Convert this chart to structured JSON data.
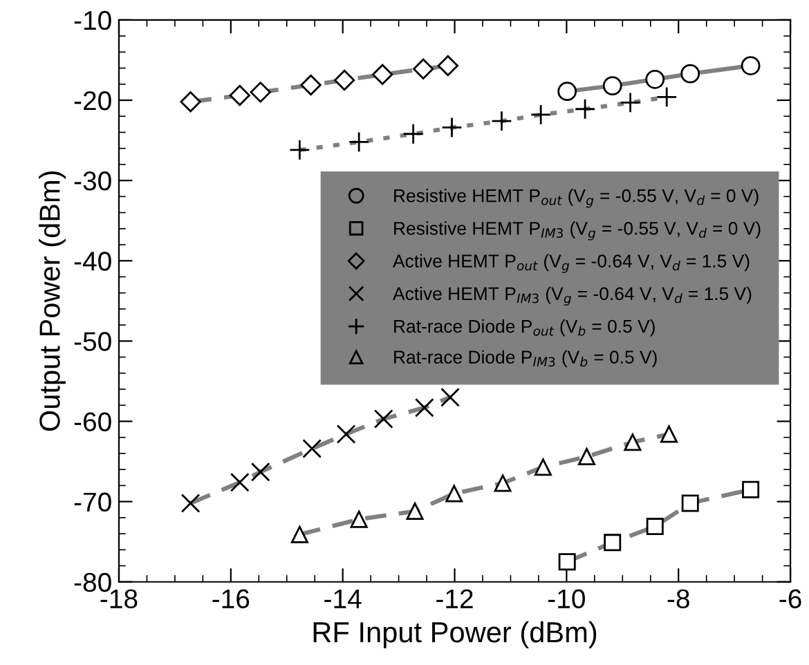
{
  "chart_data": {
    "type": "line",
    "xlabel": "RF Input Power (dBm)",
    "ylabel": "Output Power (dBm)",
    "xlim": [
      -18,
      -6
    ],
    "xticks": [
      -18,
      -16,
      -14,
      -12,
      -10,
      -8,
      -6
    ],
    "ylim": [
      -80,
      -10
    ],
    "yticks": [
      -80,
      -70,
      -60,
      -50,
      -40,
      -30,
      -20,
      -10
    ],
    "grid": false,
    "legend": "right",
    "series": [
      {
        "name": "Resistive HEMT P$_{out}$ (V$_{g}$ = -0.55 V, V$_{d}$ = 0 V)",
        "color": "#808080",
        "marker": "circle",
        "line_style": "solid",
        "x": [
          -9.99,
          -9.18,
          -8.42,
          -7.79,
          -6.71
        ],
        "values": [
          -18.9,
          -18.2,
          -17.4,
          -16.7,
          -15.7
        ]
      },
      {
        "name": "Resistive HEMT P$_{IM3}$ (V$_{g}$ = -0.55 V, V$_{d}$ = 0 V)",
        "color": "#808080",
        "marker": "square",
        "line_style": "dashed",
        "x": [
          -9.99,
          -9.18,
          -8.42,
          -7.79,
          -6.71
        ],
        "values": [
          -77.5,
          -75.1,
          -73.1,
          -70.2,
          -68.5
        ]
      },
      {
        "name": "Active HEMT P$_{out}$ (V$_{g}$ = -0.64 V, V$_{d}$ = 1.5 V)",
        "color": "#808080",
        "marker": "diamond",
        "line_style": "dashed",
        "x": [
          -16.72,
          -15.84,
          -15.47,
          -14.57,
          -13.97,
          -13.29,
          -12.56,
          -12.12
        ],
        "values": [
          -20.2,
          -19.4,
          -19.0,
          -18.1,
          -17.5,
          -16.8,
          -16.1,
          -15.7
        ]
      },
      {
        "name": "Active HEMT P$_{IM3}$ (V$_{g}$ = -0.64 V, V$_{d}$ = 1.5 V)",
        "color": "#808080",
        "marker": "cross",
        "line_style": "dashed",
        "x": [
          -16.72,
          -15.84,
          -15.47,
          -14.55,
          -13.94,
          -13.27,
          -12.54,
          -12.08
        ],
        "values": [
          -70.2,
          -67.6,
          -66.3,
          -63.4,
          -61.6,
          -59.7,
          -58.3,
          -57.0
        ]
      },
      {
        "name": "Rat-race Diode P$_{out}$ (V$_{b}$ = 0.5 V)",
        "color": "#808080",
        "marker": "plus",
        "line_style": "dotted",
        "x": [
          -14.77,
          -13.71,
          -12.74,
          -12.05,
          -11.16,
          -10.46,
          -9.67,
          -8.86,
          -8.21
        ],
        "values": [
          -26.2,
          -25.2,
          -24.2,
          -23.4,
          -22.6,
          -21.8,
          -21.1,
          -20.3,
          -19.6
        ]
      },
      {
        "name": "Rat-race Diode P$_{IM3}$ (V$_{b}$ = 0.5 V)",
        "color": "#808080",
        "marker": "triangle",
        "line_style": "dashed",
        "x": [
          -14.77,
          -13.71,
          -12.71,
          -12.01,
          -11.14,
          -10.42,
          -9.64,
          -8.82,
          -8.17
        ],
        "values": [
          -74.1,
          -72.2,
          -71.2,
          -69.0,
          -67.7,
          -65.7,
          -64.4,
          -62.6,
          -61.6
        ]
      }
    ]
  }
}
